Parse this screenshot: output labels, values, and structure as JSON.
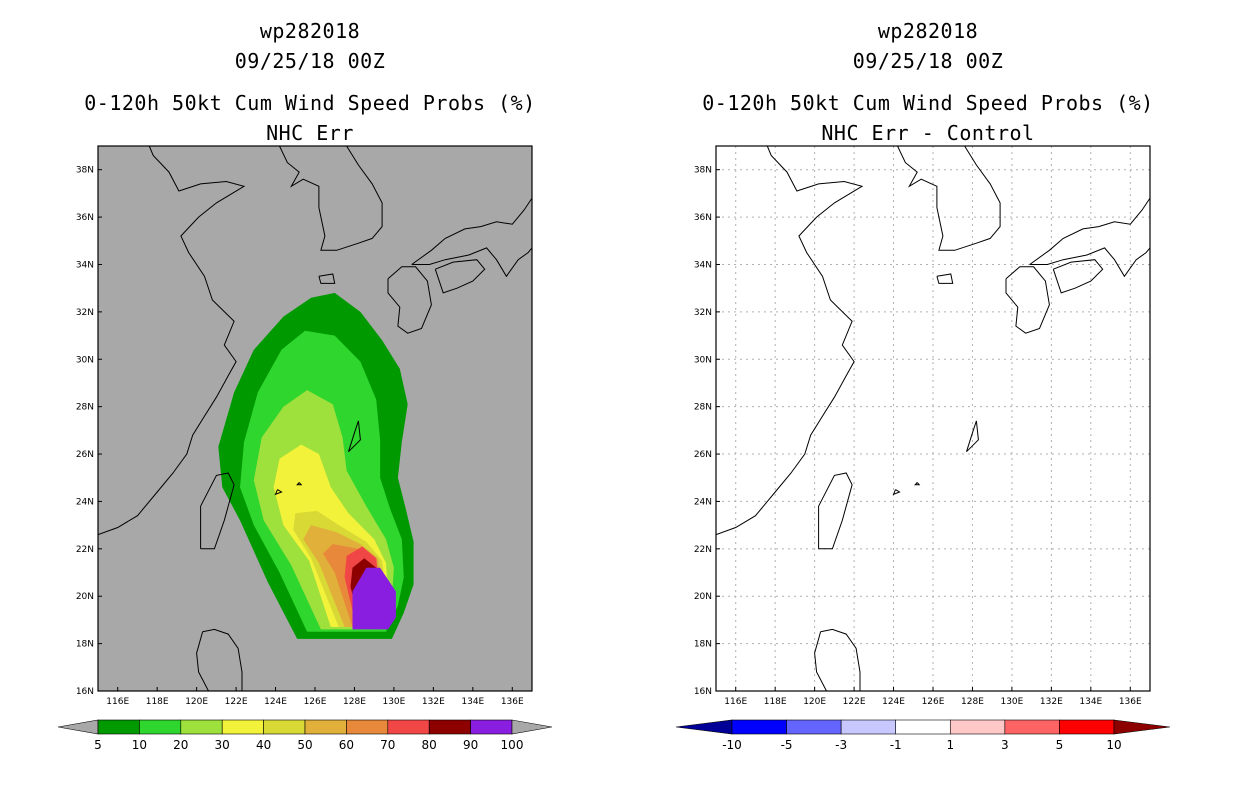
{
  "left_panel": {
    "title_lines": [
      "wp282018",
      "09/25/18 00Z",
      "0-120h 50kt Cum Wind Speed Probs (%)",
      "NHC Err"
    ],
    "background": "#a8a8a8"
  },
  "right_panel": {
    "title_lines": [
      "wp282018",
      "09/25/18 00Z",
      "0-120h 50kt Cum Wind Speed Probs (%)",
      "NHC Err - Control"
    ],
    "background": "#ffffff"
  },
  "chart_data": [
    {
      "type": "heatmap",
      "panel": "left",
      "title": "0-120h 50kt Cum Wind Speed Probs (%)",
      "subtitle": "NHC Err",
      "storm": "wp282018",
      "datetime": "09/25/18 00Z",
      "xlim": [
        115,
        137
      ],
      "ylim": [
        16,
        39
      ],
      "x_ticks": [
        116,
        118,
        120,
        122,
        124,
        126,
        128,
        130,
        132,
        134,
        136
      ],
      "x_tick_labels": [
        "116E",
        "118E",
        "120E",
        "122E",
        "124E",
        "126E",
        "128E",
        "130E",
        "132E",
        "134E",
        "136E"
      ],
      "y_ticks": [
        16,
        18,
        20,
        22,
        24,
        26,
        28,
        30,
        32,
        34,
        36,
        38
      ],
      "y_tick_labels": [
        "16N",
        "18N",
        "20N",
        "22N",
        "24N",
        "26N",
        "28N",
        "30N",
        "32N",
        "34N",
        "36N",
        "38N"
      ],
      "colorbar": {
        "labels": [
          "5",
          "10",
          "20",
          "30",
          "40",
          "50",
          "60",
          "70",
          "80",
          "90",
          "100"
        ],
        "colors": [
          "#009a00",
          "#2ed62e",
          "#9ee03c",
          "#f2f23a",
          "#d9d936",
          "#e0b03a",
          "#e8883a",
          "#f04646",
          "#8c0000",
          "#8a1ee0"
        ],
        "end_colors": [
          "#a8a8a8",
          "#a8a8a8"
        ]
      },
      "levels": [
        {
          "threshold": 5,
          "color": "#009a00",
          "polygon": [
            [
              125.1,
              18.2
            ],
            [
              129.9,
              18.2
            ],
            [
              130.5,
              19.3
            ],
            [
              131.0,
              20.5
            ],
            [
              131.0,
              22.3
            ],
            [
              130.6,
              23.7
            ],
            [
              130.2,
              25.0
            ],
            [
              130.4,
              26.5
            ],
            [
              130.7,
              28.1
            ],
            [
              130.3,
              29.6
            ],
            [
              129.4,
              30.8
            ],
            [
              128.3,
              32.0
            ],
            [
              127.0,
              32.8
            ],
            [
              125.8,
              32.6
            ],
            [
              124.4,
              31.8
            ],
            [
              122.9,
              30.4
            ],
            [
              121.9,
              28.6
            ],
            [
              121.1,
              26.3
            ],
            [
              121.3,
              24.6
            ],
            [
              122.2,
              23.2
            ],
            [
              123.6,
              20.6
            ]
          ]
        },
        {
          "threshold": 10,
          "color": "#2ed62e",
          "polygon": [
            [
              125.6,
              18.5
            ],
            [
              129.6,
              18.5
            ],
            [
              130.2,
              19.6
            ],
            [
              130.5,
              20.8
            ],
            [
              130.4,
              22.4
            ],
            [
              129.8,
              23.7
            ],
            [
              129.3,
              25.0
            ],
            [
              129.3,
              26.6
            ],
            [
              129.1,
              28.3
            ],
            [
              128.3,
              29.9
            ],
            [
              127.0,
              31.0
            ],
            [
              125.5,
              31.2
            ],
            [
              124.3,
              30.4
            ],
            [
              123.1,
              28.6
            ],
            [
              122.4,
              26.5
            ],
            [
              122.2,
              24.6
            ],
            [
              122.9,
              23.0
            ],
            [
              124.2,
              21.0
            ]
          ]
        },
        {
          "threshold": 20,
          "color": "#9ee03c",
          "polygon": [
            [
              126.3,
              18.6
            ],
            [
              129.4,
              18.6
            ],
            [
              129.9,
              19.9
            ],
            [
              130.0,
              21.2
            ],
            [
              129.6,
              22.4
            ],
            [
              128.6,
              23.8
            ],
            [
              127.6,
              25.3
            ],
            [
              127.4,
              26.7
            ],
            [
              126.9,
              28.1
            ],
            [
              125.6,
              28.7
            ],
            [
              124.4,
              28.0
            ],
            [
              123.3,
              26.7
            ],
            [
              122.9,
              24.9
            ],
            [
              123.4,
              23.2
            ],
            [
              124.8,
              21.3
            ]
          ]
        },
        {
          "threshold": 30,
          "color": "#f2f23a",
          "polygon": [
            [
              126.8,
              18.7
            ],
            [
              129.3,
              18.7
            ],
            [
              129.7,
              20.1
            ],
            [
              129.6,
              21.4
            ],
            [
              129.0,
              22.4
            ],
            [
              127.7,
              23.5
            ],
            [
              126.8,
              24.6
            ],
            [
              126.2,
              26.0
            ],
            [
              125.3,
              26.4
            ],
            [
              124.2,
              25.8
            ],
            [
              123.9,
              24.6
            ],
            [
              124.4,
              23.0
            ],
            [
              125.7,
              21.5
            ]
          ]
        },
        {
          "threshold": 40,
          "color": "#d9d936",
          "polygon": [
            [
              127.2,
              18.7
            ],
            [
              129.2,
              18.7
            ],
            [
              129.6,
              20.2
            ],
            [
              129.4,
              21.5
            ],
            [
              128.6,
              22.3
            ],
            [
              127.4,
              22.9
            ],
            [
              126.1,
              23.6
            ],
            [
              125.0,
              23.5
            ],
            [
              124.9,
              22.8
            ],
            [
              125.8,
              21.6
            ]
          ]
        },
        {
          "threshold": 50,
          "color": "#e0b03a",
          "polygon": [
            [
              127.5,
              18.7
            ],
            [
              129.2,
              18.7
            ],
            [
              129.5,
              20.3
            ],
            [
              129.2,
              21.6
            ],
            [
              128.3,
              22.2
            ],
            [
              127.1,
              22.7
            ],
            [
              125.8,
              23.0
            ],
            [
              125.4,
              22.4
            ],
            [
              126.2,
              21.4
            ]
          ]
        },
        {
          "threshold": 60,
          "color": "#e8883a",
          "polygon": [
            [
              127.9,
              18.7
            ],
            [
              129.2,
              18.7
            ],
            [
              129.4,
              20.4
            ],
            [
              129.0,
              21.7
            ],
            [
              128.2,
              22.0
            ],
            [
              126.9,
              22.2
            ],
            [
              126.4,
              21.8
            ],
            [
              127.0,
              21.0
            ]
          ]
        },
        {
          "threshold": 70,
          "color": "#f04646",
          "polygon": [
            [
              128.1,
              18.7
            ],
            [
              129.2,
              18.7
            ],
            [
              129.3,
              20.2
            ],
            [
              129.1,
              21.6
            ],
            [
              128.4,
              22.1
            ],
            [
              127.6,
              21.7
            ],
            [
              127.5,
              20.8
            ]
          ]
        },
        {
          "threshold": 80,
          "color": "#8c0000",
          "polygon": [
            [
              128.3,
              18.8
            ],
            [
              129.2,
              18.8
            ],
            [
              129.3,
              20.0
            ],
            [
              129.1,
              21.2
            ],
            [
              128.5,
              21.6
            ],
            [
              127.9,
              21.2
            ],
            [
              127.8,
              20.4
            ]
          ]
        },
        {
          "threshold": 90,
          "color": "#8a1ee0",
          "polygon": [
            [
              127.9,
              18.6
            ],
            [
              129.7,
              18.6
            ],
            [
              130.1,
              19.1
            ],
            [
              130.1,
              20.2
            ],
            [
              129.3,
              21.2
            ],
            [
              128.6,
              21.2
            ],
            [
              127.9,
              20.2
            ]
          ]
        }
      ]
    },
    {
      "type": "heatmap",
      "panel": "right",
      "title": "0-120h 50kt Cum Wind Speed Probs (%)",
      "subtitle": "NHC Err - Control",
      "storm": "wp282018",
      "datetime": "09/25/18 00Z",
      "xlim": [
        115,
        137
      ],
      "ylim": [
        16,
        39
      ],
      "x_ticks": [
        116,
        118,
        120,
        122,
        124,
        126,
        128,
        130,
        132,
        134,
        136
      ],
      "x_tick_labels": [
        "116E",
        "118E",
        "120E",
        "122E",
        "124E",
        "126E",
        "128E",
        "130E",
        "132E",
        "134E",
        "136E"
      ],
      "y_ticks": [
        16,
        18,
        20,
        22,
        24,
        26,
        28,
        30,
        32,
        34,
        36,
        38
      ],
      "y_tick_labels": [
        "16N",
        "18N",
        "20N",
        "22N",
        "24N",
        "26N",
        "28N",
        "30N",
        "32N",
        "34N",
        "36N",
        "38N"
      ],
      "grid": true,
      "colorbar": {
        "labels": [
          "-10",
          "-5",
          "-3",
          "-1",
          "1",
          "3",
          "5",
          "10"
        ],
        "colors": [
          "#0000ff",
          "#6464ff",
          "#c8c8ff",
          "#ffffff",
          "#ffc8c8",
          "#ff6464",
          "#ff0000"
        ],
        "end_colors": [
          "#000096",
          "#8c0000"
        ]
      },
      "levels": []
    }
  ]
}
